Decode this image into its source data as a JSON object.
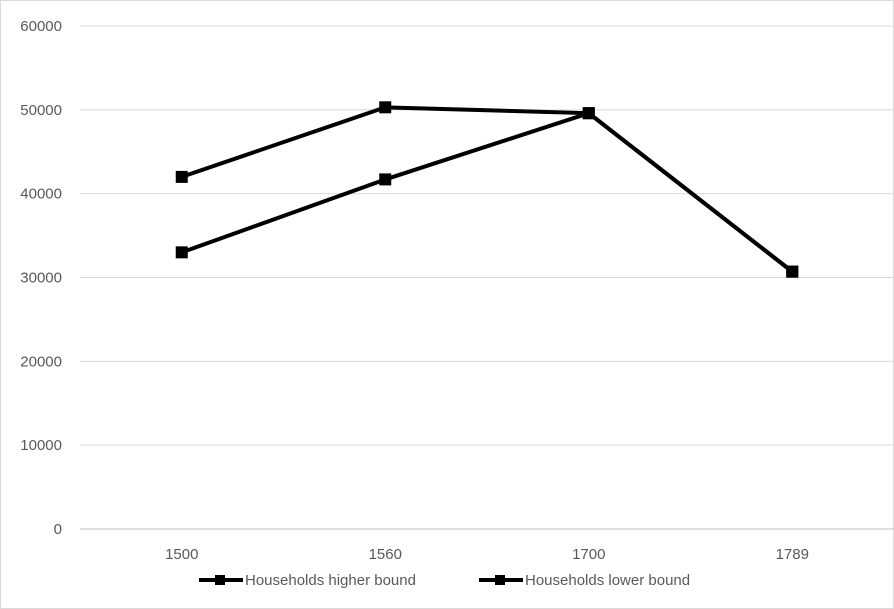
{
  "chart_data": {
    "type": "line",
    "categories": [
      "1500",
      "1560",
      "1700",
      "1789"
    ],
    "series": [
      {
        "name": "Households higher bound",
        "values": [
          42000,
          50300,
          49600,
          30700
        ],
        "color": "#000000"
      },
      {
        "name": "Households lower bound",
        "values": [
          33000,
          41700,
          49600,
          30700
        ],
        "color": "#000000"
      }
    ],
    "y_ticks": [
      "0",
      "10000",
      "20000",
      "30000",
      "40000",
      "50000",
      "60000"
    ],
    "ylim": [
      0,
      60000
    ],
    "grid": true,
    "legend_position": "bottom",
    "colors": {
      "gridline": "#d9d9d9",
      "axis": "#bfbfbf",
      "text": "#595959",
      "series": "#000000"
    }
  }
}
